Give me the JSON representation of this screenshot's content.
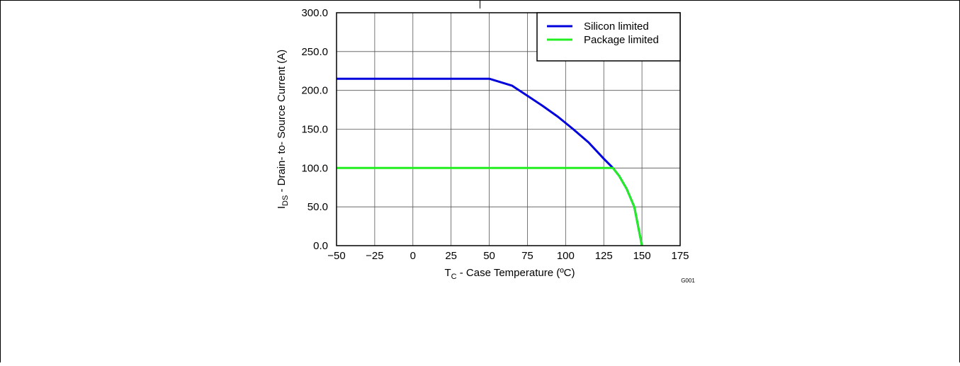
{
  "figure_code": "G001",
  "chart_data": {
    "type": "line",
    "xlabel": {
      "main": "T",
      "sub": "C",
      "rest": " - Case Temperature (ºC)"
    },
    "ylabel": {
      "main": "I",
      "sub": "DS",
      "rest": " - Drain- to- Source Current (A)"
    },
    "xlim": [
      -50,
      175
    ],
    "ylim": [
      0,
      300
    ],
    "xticks": [
      -50,
      -25,
      0,
      25,
      50,
      75,
      100,
      125,
      150,
      175
    ],
    "xtick_labels": [
      "−50",
      "−25",
      "0",
      "25",
      "50",
      "75",
      "100",
      "125",
      "150",
      "175"
    ],
    "yticks": [
      0,
      50,
      100,
      150,
      200,
      250,
      300
    ],
    "ytick_labels": [
      "0.0",
      "50.0",
      "100.0",
      "150.0",
      "200.0",
      "250.0",
      "300.0"
    ],
    "grid": true,
    "legend_position": "top-right",
    "series": [
      {
        "name": "Silicon limited",
        "color": "#0000dd",
        "x": [
          -50,
          50,
          65,
          75,
          85,
          95,
          105,
          115,
          125,
          131,
          135,
          140,
          145,
          150
        ],
        "y": [
          215,
          215,
          206,
          193,
          180,
          166,
          150,
          133,
          112,
          100,
          90,
          73,
          50,
          0
        ]
      },
      {
        "name": "Package limited",
        "color": "#22ee22",
        "x": [
          -50,
          131,
          135,
          140,
          145,
          150
        ],
        "y": [
          100,
          100,
          90,
          73,
          50,
          0
        ]
      }
    ]
  }
}
